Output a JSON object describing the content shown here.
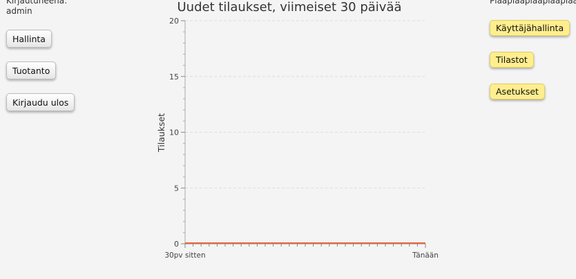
{
  "user": {
    "logged_in_label": "Kirjautuneena:",
    "username": "admin"
  },
  "left_nav": {
    "admin_label": "Hallinta",
    "production_label": "Tuotanto",
    "logout_label": "Kirjaudu ulos"
  },
  "right_panel": {
    "top_text": "Plaaplaaplaaplaaplaa"
  },
  "right_nav": {
    "user_management_label": "Käyttäjähallinta",
    "statistics_label": "Tilastot",
    "settings_label": "Asetukset"
  },
  "colors": {
    "line": "#e8643c",
    "grid": "#dddddd",
    "accent_button": "#ffee8e"
  },
  "chart_data": {
    "type": "line",
    "title": "Uudet tilaukset, viimeiset 30 päivää",
    "xlabel": "",
    "ylabel": "Tilaukset",
    "x_tick_labels": [
      "30pv sitten",
      "Tänään"
    ],
    "x": [
      30,
      29,
      28,
      27,
      26,
      25,
      24,
      23,
      22,
      21,
      20,
      19,
      18,
      17,
      16,
      15,
      14,
      13,
      12,
      11,
      10,
      9,
      8,
      7,
      6,
      5,
      4,
      3,
      2,
      1,
      0
    ],
    "values": [
      0,
      0,
      0,
      0,
      0,
      0,
      0,
      0,
      0,
      0,
      0,
      0,
      0,
      0,
      0,
      0,
      0,
      0,
      0,
      0,
      0,
      0,
      0,
      0,
      0,
      0,
      0,
      0,
      0,
      0,
      0
    ],
    "xlim": [
      30,
      0
    ],
    "ylim": [
      0,
      20
    ],
    "yticks": [
      0,
      5,
      10,
      15,
      20
    ],
    "grid": true,
    "legend": "none"
  }
}
